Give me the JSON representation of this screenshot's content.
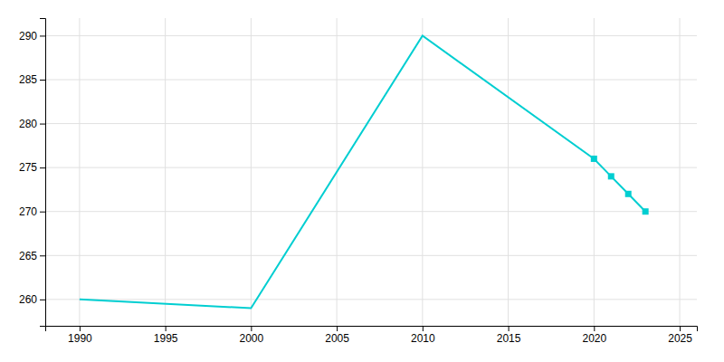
{
  "chart_data": {
    "type": "line",
    "x": [
      1990,
      2000,
      2010,
      2020,
      2021,
      2022,
      2023
    ],
    "series": [
      {
        "type": "line",
        "color": "#00CED1",
        "values": [
          260,
          259,
          290,
          276,
          274,
          272,
          270
        ]
      },
      {
        "type": "scatter",
        "marker": "square",
        "color": "#00CED1",
        "values": [
          null,
          null,
          null,
          276,
          274,
          272,
          270
        ]
      }
    ],
    "xlim": [
      1988,
      2026
    ],
    "ylim": [
      257,
      292
    ],
    "xticks": [
      1990,
      1995,
      2000,
      2005,
      2010,
      2015,
      2020,
      2025
    ],
    "yticks": [
      260,
      265,
      270,
      275,
      280,
      285,
      290
    ],
    "grid": true
  }
}
